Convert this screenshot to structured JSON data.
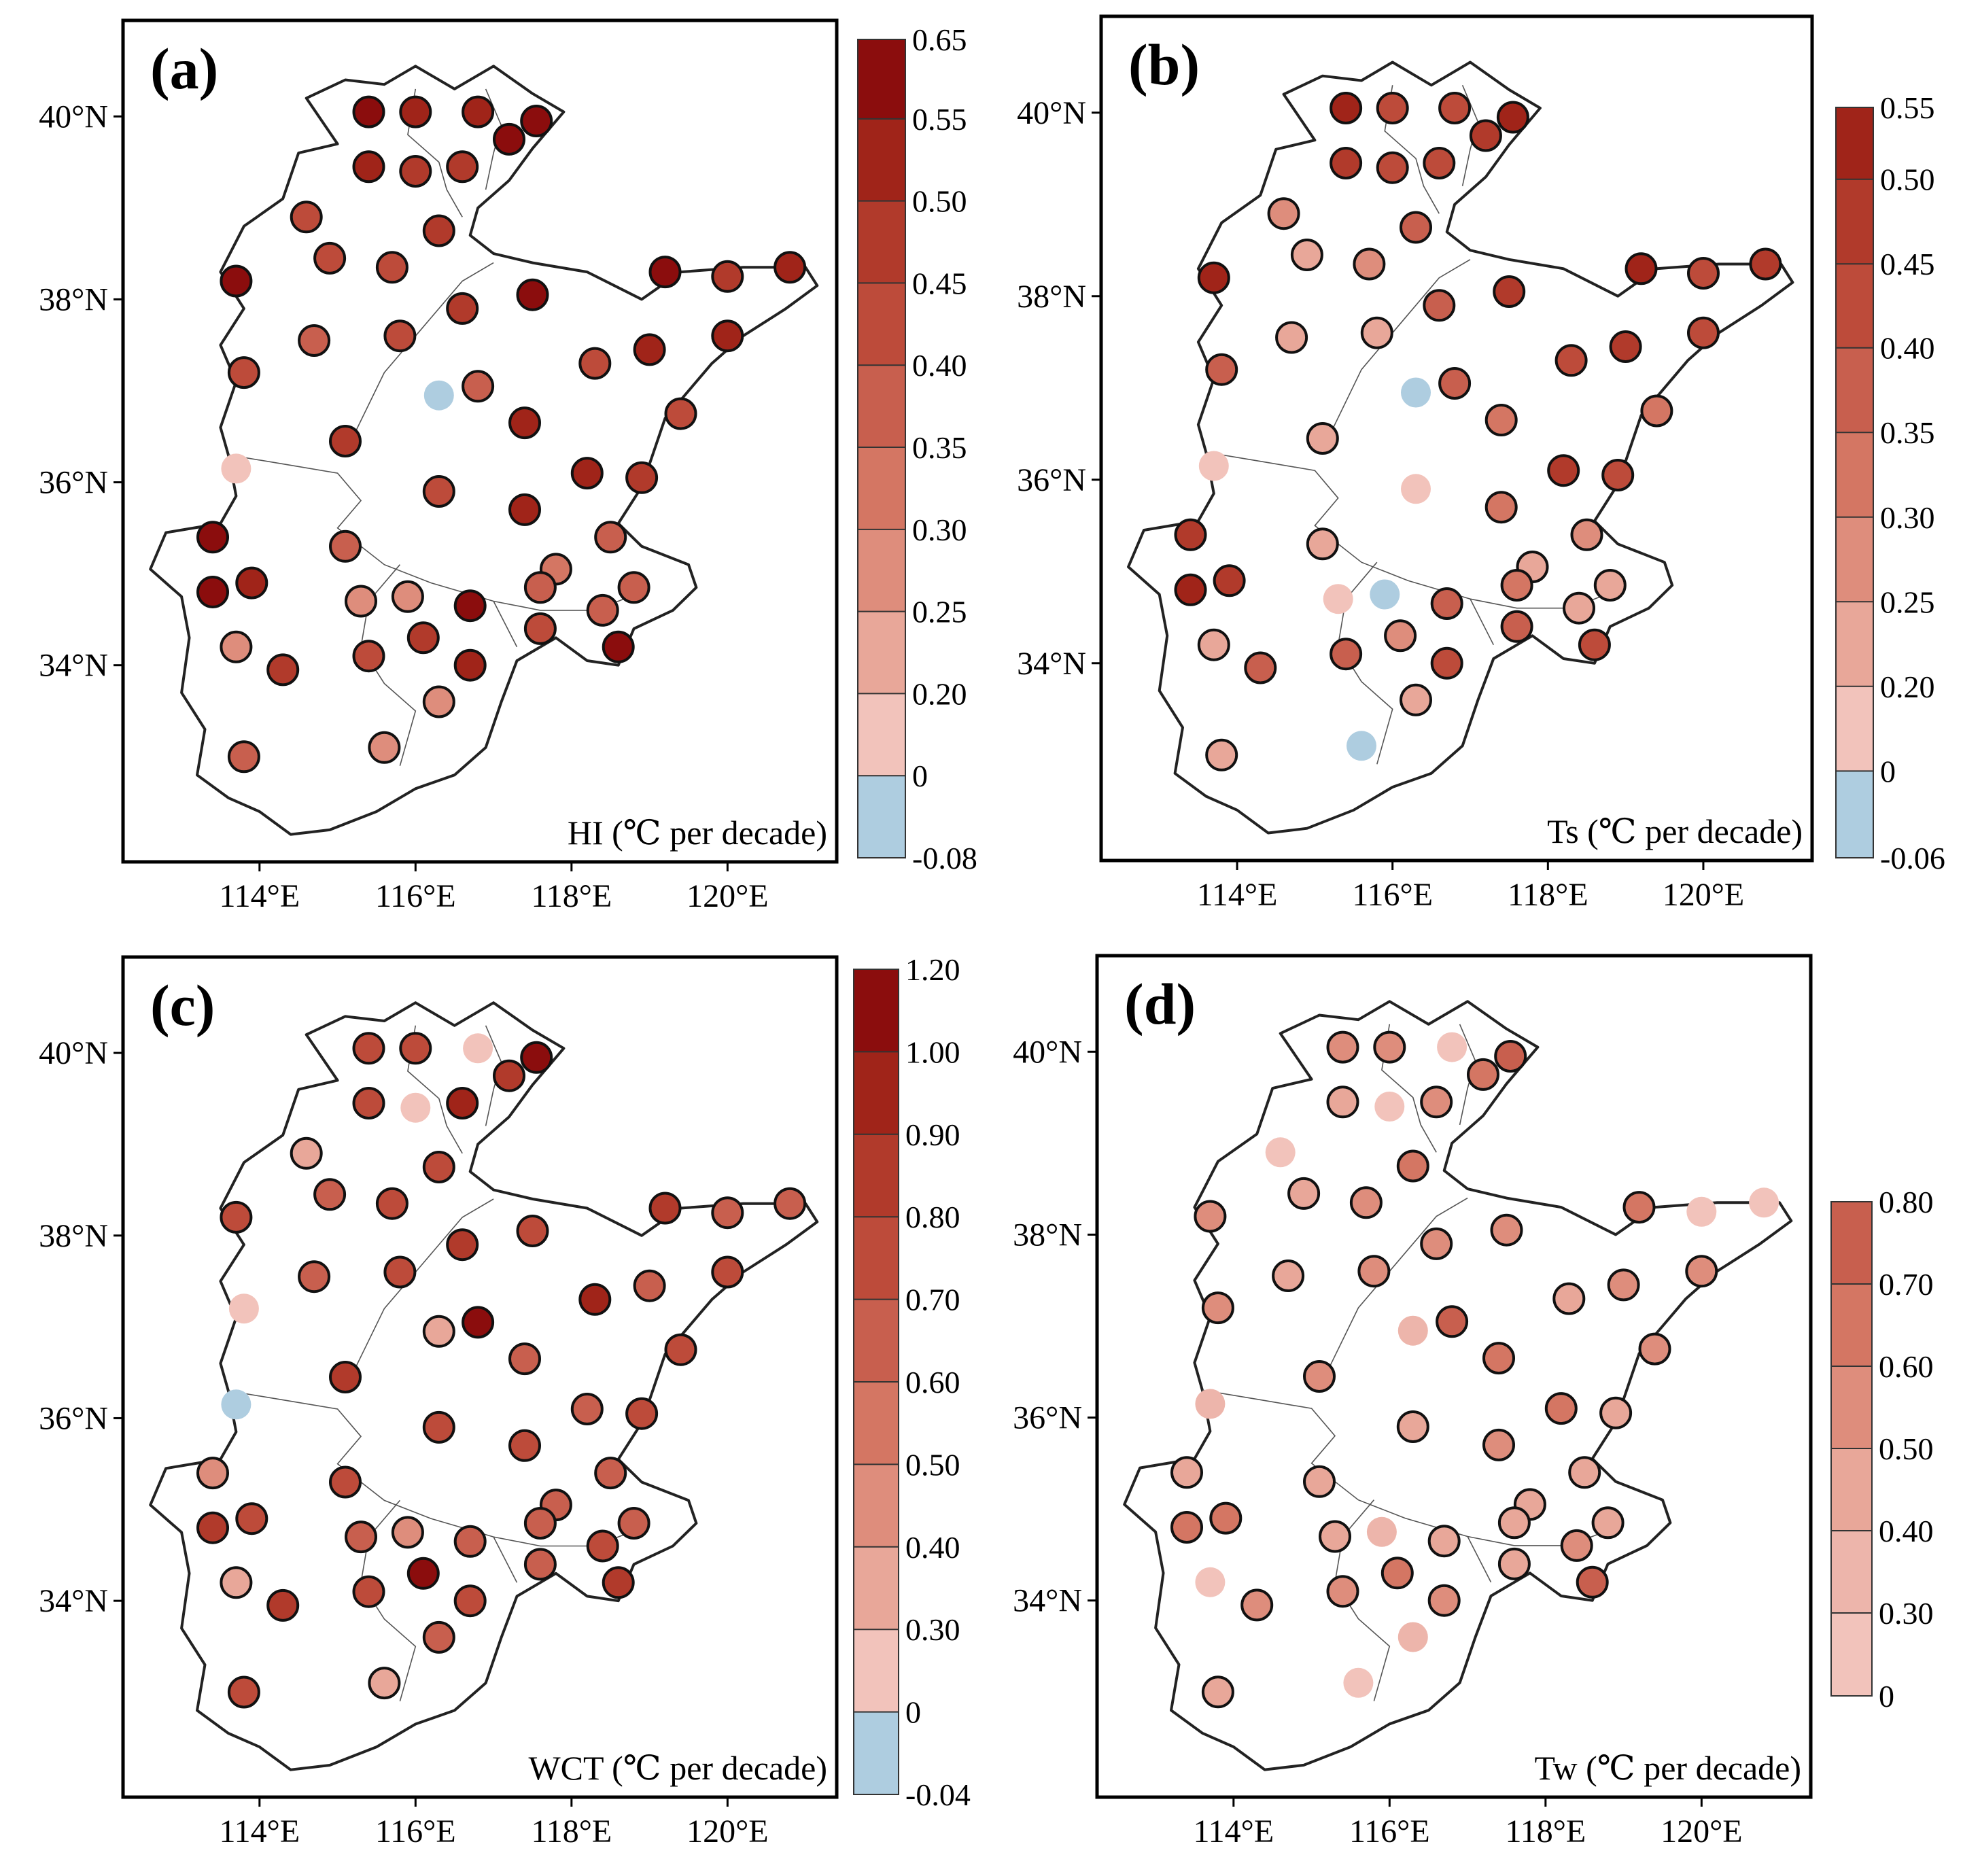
{
  "figure": {
    "axis_labels": {
      "lat": [
        "40°N",
        "38°N",
        "36°N",
        "34°N"
      ],
      "lon": [
        "114°E",
        "116°E",
        "118°E",
        "120°E"
      ]
    },
    "panels": [
      {
        "id": "a",
        "letter": "(a)",
        "caption": "HI (℃ per decade)",
        "colorbar": {
          "labels": [
            "0.65",
            "0.55",
            "0.50",
            "0.45",
            "0.40",
            "0.35",
            "0.30",
            "0.25",
            "0.20",
            "0",
            "-0.08"
          ],
          "colors": [
            "#8b0d0d",
            "#a02419",
            "#b13a2b",
            "#bd4b3a",
            "#c85f4e",
            "#d47663",
            "#de8d7c",
            "#e8a799",
            "#f2c3bb",
            "#aecde0"
          ]
        },
        "stations": [
          [
            115.4,
            40.05,
            0
          ],
          [
            116.0,
            40.05,
            1
          ],
          [
            116.8,
            40.05,
            1
          ],
          [
            117.55,
            39.95,
            0
          ],
          [
            117.2,
            39.75,
            0
          ],
          [
            115.4,
            39.45,
            1
          ],
          [
            116.0,
            39.4,
            2
          ],
          [
            116.6,
            39.45,
            2
          ],
          [
            114.6,
            38.9,
            3
          ],
          [
            116.3,
            38.75,
            2
          ],
          [
            114.9,
            38.45,
            3
          ],
          [
            115.7,
            38.35,
            3
          ],
          [
            113.7,
            38.2,
            0
          ],
          [
            117.5,
            38.05,
            0
          ],
          [
            119.2,
            38.3,
            0
          ],
          [
            120.0,
            38.25,
            2
          ],
          [
            120.8,
            38.35,
            1
          ],
          [
            114.7,
            37.55,
            4
          ],
          [
            115.8,
            37.6,
            3
          ],
          [
            116.6,
            37.9,
            2
          ],
          [
            113.8,
            37.2,
            3
          ],
          [
            116.3,
            36.95,
            9
          ],
          [
            116.8,
            37.05,
            4
          ],
          [
            118.3,
            37.3,
            3
          ],
          [
            119.0,
            37.45,
            1
          ],
          [
            120.0,
            37.6,
            1
          ],
          [
            119.4,
            36.75,
            3
          ],
          [
            115.1,
            36.45,
            2
          ],
          [
            117.4,
            36.65,
            1
          ],
          [
            118.2,
            36.1,
            1
          ],
          [
            118.9,
            36.05,
            2
          ],
          [
            113.7,
            36.15,
            8
          ],
          [
            116.3,
            35.9,
            3
          ],
          [
            117.4,
            35.7,
            1
          ],
          [
            113.4,
            35.4,
            0
          ],
          [
            115.1,
            35.3,
            4
          ],
          [
            118.5,
            35.4,
            4
          ],
          [
            117.8,
            35.05,
            5
          ],
          [
            113.9,
            34.9,
            1
          ],
          [
            113.4,
            34.8,
            0
          ],
          [
            115.3,
            34.7,
            6
          ],
          [
            115.9,
            34.75,
            6
          ],
          [
            116.7,
            34.65,
            0
          ],
          [
            117.6,
            34.85,
            4
          ],
          [
            118.4,
            34.6,
            4
          ],
          [
            118.8,
            34.85,
            4
          ],
          [
            117.6,
            34.4,
            3
          ],
          [
            118.6,
            34.2,
            0
          ],
          [
            113.7,
            34.2,
            6
          ],
          [
            115.4,
            34.1,
            3
          ],
          [
            116.1,
            34.3,
            2
          ],
          [
            116.7,
            34.0,
            1
          ],
          [
            114.3,
            33.95,
            2
          ],
          [
            116.3,
            33.6,
            6
          ],
          [
            113.8,
            33.0,
            4
          ],
          [
            115.6,
            33.1,
            6
          ]
        ]
      },
      {
        "id": "b",
        "letter": "(b)",
        "caption": "Ts (℃ per decade)",
        "colorbar": {
          "labels": [
            "0.55",
            "0.50",
            "0.45",
            "0.40",
            "0.35",
            "0.30",
            "0.25",
            "0.20",
            "0",
            "-0.06"
          ],
          "colors": [
            "#a02419",
            "#b13a2b",
            "#bd4b3a",
            "#c85f4e",
            "#d47663",
            "#de8d7c",
            "#e8a799",
            "#f2c3bb",
            "#aecde0"
          ]
        },
        "stations": [
          [
            115.4,
            40.05,
            0
          ],
          [
            116.0,
            40.05,
            2
          ],
          [
            116.8,
            40.05,
            2
          ],
          [
            117.55,
            39.95,
            0
          ],
          [
            117.2,
            39.75,
            1
          ],
          [
            115.4,
            39.45,
            1
          ],
          [
            116.0,
            39.4,
            2
          ],
          [
            116.6,
            39.45,
            2
          ],
          [
            114.6,
            38.9,
            5
          ],
          [
            116.3,
            38.75,
            3
          ],
          [
            114.9,
            38.45,
            6
          ],
          [
            115.7,
            38.35,
            5
          ],
          [
            113.7,
            38.2,
            0
          ],
          [
            117.5,
            38.05,
            1
          ],
          [
            119.2,
            38.3,
            0
          ],
          [
            120.0,
            38.25,
            2
          ],
          [
            120.8,
            38.35,
            1
          ],
          [
            114.7,
            37.55,
            6
          ],
          [
            115.8,
            37.6,
            6
          ],
          [
            116.6,
            37.9,
            3
          ],
          [
            113.8,
            37.2,
            3
          ],
          [
            116.3,
            36.95,
            8
          ],
          [
            116.8,
            37.05,
            3
          ],
          [
            118.3,
            37.3,
            2
          ],
          [
            119.0,
            37.45,
            1
          ],
          [
            120.0,
            37.6,
            2
          ],
          [
            119.4,
            36.75,
            4
          ],
          [
            115.1,
            36.45,
            6
          ],
          [
            117.4,
            36.65,
            4
          ],
          [
            118.2,
            36.1,
            1
          ],
          [
            118.9,
            36.05,
            2
          ],
          [
            113.7,
            36.15,
            7
          ],
          [
            116.3,
            35.9,
            7
          ],
          [
            117.4,
            35.7,
            4
          ],
          [
            113.4,
            35.4,
            1
          ],
          [
            115.1,
            35.3,
            6
          ],
          [
            118.5,
            35.4,
            5
          ],
          [
            117.8,
            35.05,
            6
          ],
          [
            113.9,
            34.9,
            1
          ],
          [
            113.4,
            34.8,
            0
          ],
          [
            115.3,
            34.7,
            7
          ],
          [
            115.9,
            34.75,
            8
          ],
          [
            116.7,
            34.65,
            3
          ],
          [
            117.6,
            34.85,
            4
          ],
          [
            118.4,
            34.6,
            6
          ],
          [
            118.8,
            34.85,
            6
          ],
          [
            117.6,
            34.4,
            3
          ],
          [
            118.6,
            34.2,
            2
          ],
          [
            113.7,
            34.2,
            6
          ],
          [
            115.4,
            34.1,
            3
          ],
          [
            116.1,
            34.3,
            5
          ],
          [
            116.7,
            34.0,
            2
          ],
          [
            114.3,
            33.95,
            3
          ],
          [
            116.3,
            33.6,
            6
          ],
          [
            113.8,
            33.0,
            6
          ],
          [
            115.6,
            33.1,
            8
          ]
        ]
      },
      {
        "id": "c",
        "letter": "(c)",
        "caption": "WCT (℃ per decade)",
        "colorbar": {
          "labels": [
            "1.20",
            "1.00",
            "0.90",
            "0.80",
            "0.70",
            "0.60",
            "0.50",
            "0.40",
            "0.30",
            "0",
            "-0.04"
          ],
          "colors": [
            "#8b0d0d",
            "#a02419",
            "#b13a2b",
            "#bd4b3a",
            "#c85f4e",
            "#d47663",
            "#de8d7c",
            "#e8a799",
            "#f2c3bb",
            "#aecde0"
          ]
        },
        "stations": [
          [
            115.4,
            40.05,
            3
          ],
          [
            116.0,
            40.05,
            3
          ],
          [
            116.8,
            40.05,
            8
          ],
          [
            117.55,
            39.95,
            0
          ],
          [
            117.2,
            39.75,
            2
          ],
          [
            115.4,
            39.45,
            3
          ],
          [
            116.0,
            39.4,
            8
          ],
          [
            116.6,
            39.45,
            1
          ],
          [
            114.6,
            38.9,
            7
          ],
          [
            116.3,
            38.75,
            3
          ],
          [
            114.9,
            38.45,
            4
          ],
          [
            115.7,
            38.35,
            3
          ],
          [
            113.7,
            38.2,
            3
          ],
          [
            117.5,
            38.05,
            3
          ],
          [
            119.2,
            38.3,
            2
          ],
          [
            120.0,
            38.25,
            4
          ],
          [
            120.8,
            38.35,
            4
          ],
          [
            114.7,
            37.55,
            4
          ],
          [
            115.8,
            37.6,
            3
          ],
          [
            116.6,
            37.9,
            2
          ],
          [
            113.8,
            37.2,
            8
          ],
          [
            116.3,
            36.95,
            7
          ],
          [
            116.8,
            37.05,
            0
          ],
          [
            118.3,
            37.3,
            1
          ],
          [
            119.0,
            37.45,
            4
          ],
          [
            120.0,
            37.6,
            3
          ],
          [
            119.4,
            36.75,
            3
          ],
          [
            115.1,
            36.45,
            2
          ],
          [
            117.4,
            36.65,
            4
          ],
          [
            118.2,
            36.1,
            4
          ],
          [
            118.9,
            36.05,
            3
          ],
          [
            113.7,
            36.15,
            9
          ],
          [
            116.3,
            35.9,
            3
          ],
          [
            117.4,
            35.7,
            3
          ],
          [
            113.4,
            35.4,
            6
          ],
          [
            115.1,
            35.3,
            3
          ],
          [
            118.5,
            35.4,
            4
          ],
          [
            117.8,
            35.05,
            4
          ],
          [
            113.9,
            34.9,
            3
          ],
          [
            113.4,
            34.8,
            2
          ],
          [
            115.3,
            34.7,
            4
          ],
          [
            115.9,
            34.75,
            6
          ],
          [
            116.7,
            34.65,
            4
          ],
          [
            117.6,
            34.85,
            4
          ],
          [
            118.4,
            34.6,
            3
          ],
          [
            118.8,
            34.85,
            4
          ],
          [
            117.6,
            34.4,
            4
          ],
          [
            118.6,
            34.2,
            2
          ],
          [
            113.7,
            34.2,
            7
          ],
          [
            115.4,
            34.1,
            3
          ],
          [
            116.1,
            34.3,
            0
          ],
          [
            116.7,
            34.0,
            3
          ],
          [
            114.3,
            33.95,
            2
          ],
          [
            116.3,
            33.6,
            4
          ],
          [
            113.8,
            33.0,
            3
          ],
          [
            115.6,
            33.1,
            7
          ]
        ]
      },
      {
        "id": "d",
        "letter": "(d)",
        "caption": "Tw (℃ per decade)",
        "colorbar": {
          "labels": [
            "0.80",
            "0.70",
            "0.60",
            "0.50",
            "0.40",
            "0.30",
            "0"
          ],
          "colors": [
            "#c85f4e",
            "#d47663",
            "#de8d7c",
            "#e8a799",
            "#edb5ab",
            "#f2c3bb"
          ]
        },
        "stations": [
          [
            115.4,
            40.05,
            2
          ],
          [
            116.0,
            40.05,
            2
          ],
          [
            116.8,
            40.05,
            5
          ],
          [
            117.55,
            39.95,
            0
          ],
          [
            117.2,
            39.75,
            1
          ],
          [
            115.4,
            39.45,
            3
          ],
          [
            116.0,
            39.4,
            5
          ],
          [
            116.6,
            39.45,
            2
          ],
          [
            114.6,
            38.9,
            5
          ],
          [
            116.3,
            38.75,
            1
          ],
          [
            114.9,
            38.45,
            3
          ],
          [
            115.7,
            38.35,
            2
          ],
          [
            113.7,
            38.2,
            2
          ],
          [
            117.5,
            38.05,
            2
          ],
          [
            119.2,
            38.3,
            1
          ],
          [
            120.0,
            38.25,
            5
          ],
          [
            120.8,
            38.35,
            5
          ],
          [
            114.7,
            37.55,
            3
          ],
          [
            115.8,
            37.6,
            2
          ],
          [
            116.6,
            37.9,
            2
          ],
          [
            113.8,
            37.2,
            2
          ],
          [
            116.3,
            36.95,
            4
          ],
          [
            116.8,
            37.05,
            0
          ],
          [
            118.3,
            37.3,
            3
          ],
          [
            119.0,
            37.45,
            2
          ],
          [
            120.0,
            37.6,
            2
          ],
          [
            119.4,
            36.75,
            2
          ],
          [
            115.1,
            36.45,
            2
          ],
          [
            117.4,
            36.65,
            1
          ],
          [
            118.2,
            36.1,
            1
          ],
          [
            118.9,
            36.05,
            3
          ],
          [
            113.7,
            36.15,
            4
          ],
          [
            116.3,
            35.9,
            3
          ],
          [
            117.4,
            35.7,
            2
          ],
          [
            113.4,
            35.4,
            3
          ],
          [
            115.1,
            35.3,
            3
          ],
          [
            118.5,
            35.4,
            3
          ],
          [
            117.8,
            35.05,
            3
          ],
          [
            113.9,
            34.9,
            1
          ],
          [
            113.4,
            34.8,
            1
          ],
          [
            115.3,
            34.7,
            3
          ],
          [
            115.9,
            34.75,
            4
          ],
          [
            116.7,
            34.65,
            3
          ],
          [
            117.6,
            34.85,
            3
          ],
          [
            118.4,
            34.6,
            2
          ],
          [
            118.8,
            34.85,
            3
          ],
          [
            117.6,
            34.4,
            3
          ],
          [
            118.6,
            34.2,
            0
          ],
          [
            113.7,
            34.2,
            5
          ],
          [
            115.4,
            34.1,
            2
          ],
          [
            116.1,
            34.3,
            1
          ],
          [
            116.7,
            34.0,
            2
          ],
          [
            114.3,
            33.95,
            2
          ],
          [
            116.3,
            33.6,
            4
          ],
          [
            113.8,
            33.0,
            3
          ],
          [
            115.6,
            33.1,
            5
          ]
        ]
      }
    ]
  }
}
